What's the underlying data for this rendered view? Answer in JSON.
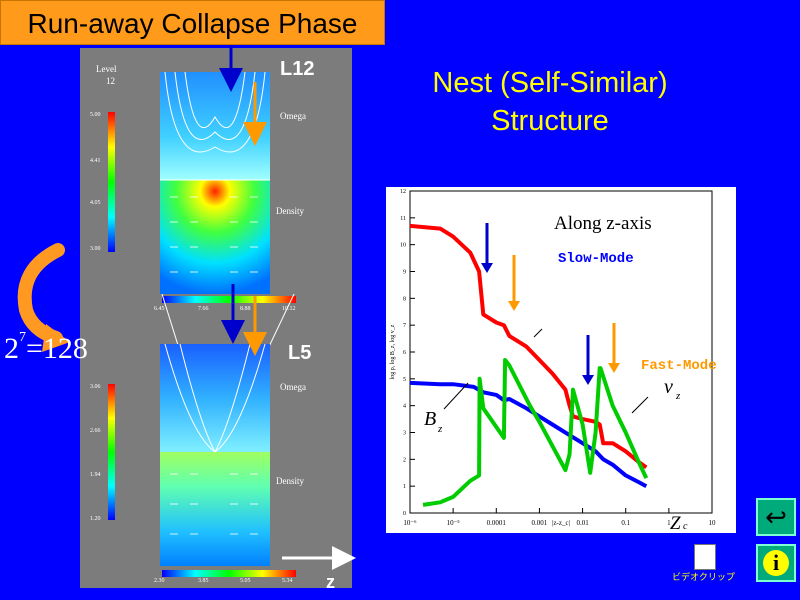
{
  "title": "Run-away Collapse Phase",
  "headline": {
    "line1": "Nest (Self-Similar)",
    "line2": "Structure"
  },
  "equation": {
    "base": "2",
    "exponent": "7",
    "rhs": "=128"
  },
  "sim_panel": {
    "level_label": "Level",
    "level_value": "12",
    "top_plot": {
      "tag": "L12",
      "omega_label": "Omega",
      "density_label": "Density",
      "colorbar_ticks": [
        "5.00",
        "4.41",
        "4.05",
        "3.00"
      ],
      "h_ticks": [
        "6.45",
        "7.66",
        "8.88",
        "10.12"
      ]
    },
    "bottom_plot": {
      "tag": "L5",
      "omega_label": "Omega",
      "density_label": "Density",
      "colorbar_ticks": [
        "3.06",
        "2.66",
        "1.94",
        "1.20"
      ],
      "h_ticks": [
        "2.30",
        "3.85",
        "5.05",
        "5.34"
      ]
    },
    "axis_label": "z"
  },
  "chart_data": {
    "type": "line",
    "title": "",
    "annotation": "Along z-axis",
    "xlabel": "|z-z_c|",
    "ylabel": "log ρ, log B_z, log v_z",
    "x_scale": "log",
    "xlim": [
      1e-06,
      10
    ],
    "ylim": [
      0,
      12
    ],
    "x_ticks": [
      "10⁻⁶",
      "10⁻⁵",
      "0.0001",
      "0.001",
      "0.01",
      "0.1",
      "1",
      "10"
    ],
    "y_ticks": [
      "0",
      "1",
      "2",
      "3",
      "4",
      "5",
      "6",
      "7",
      "8",
      "9",
      "10",
      "11",
      "12"
    ],
    "grid": false,
    "labels": {
      "slow": "Slow-Mode",
      "fast": "Fast-Mode",
      "vz": "v",
      "vz_sub": "z",
      "bz": "B",
      "bz_sub": "z",
      "zc": "Z",
      "zc_sub": "c"
    },
    "series": [
      {
        "color": "#ff0000",
        "x": [
          1e-06,
          5e-06,
          1e-05,
          2.5e-05,
          4e-05,
          5e-05,
          0.0001,
          0.00015,
          0.0002,
          0.0005,
          0.001,
          0.002,
          0.004,
          0.005,
          0.006,
          0.01,
          0.02,
          0.025,
          0.03,
          0.05,
          0.1,
          0.2,
          0.3
        ],
        "y": [
          10.7,
          10.6,
          10.3,
          9.7,
          9.0,
          7.4,
          7.1,
          7.0,
          6.6,
          6.2,
          5.7,
          5.2,
          4.6,
          4.0,
          3.6,
          3.5,
          3.4,
          3.3,
          2.6,
          2.6,
          2.3,
          1.9,
          1.7
        ]
      },
      {
        "color": "#0000ff",
        "x": [
          1e-06,
          5e-06,
          1e-05,
          3e-05,
          5e-05,
          0.0001,
          0.00015,
          0.0002,
          0.0005,
          0.001,
          0.002,
          0.005,
          0.01,
          0.02,
          0.03,
          0.05,
          0.1,
          0.2,
          0.3
        ],
        "y": [
          4.85,
          4.8,
          4.8,
          4.7,
          4.5,
          4.4,
          4.2,
          4.25,
          3.9,
          3.6,
          3.3,
          2.9,
          2.6,
          2.3,
          2.0,
          1.8,
          1.4,
          1.15,
          1.0
        ]
      },
      {
        "color": "#00cc00",
        "x": [
          2e-06,
          5e-06,
          1e-05,
          2.5e-05,
          4e-05,
          4.1e-05,
          5e-05,
          0.00015,
          0.00016,
          0.0002,
          0.0006,
          0.001,
          0.004,
          0.005,
          0.006,
          0.01,
          0.015,
          0.02,
          0.025,
          0.026,
          0.05,
          0.1,
          0.2,
          0.3
        ],
        "y": [
          0.3,
          0.4,
          0.6,
          1.2,
          1.4,
          5.0,
          3.9,
          2.8,
          5.7,
          5.5,
          4.0,
          3.4,
          1.6,
          2.2,
          4.6,
          3.3,
          1.5,
          3.0,
          5.4,
          5.4,
          4.0,
          3.0,
          1.9,
          1.3
        ]
      }
    ]
  },
  "video_caption": "ビデオクリップ",
  "nav": {
    "back": "↩",
    "info": "i"
  }
}
